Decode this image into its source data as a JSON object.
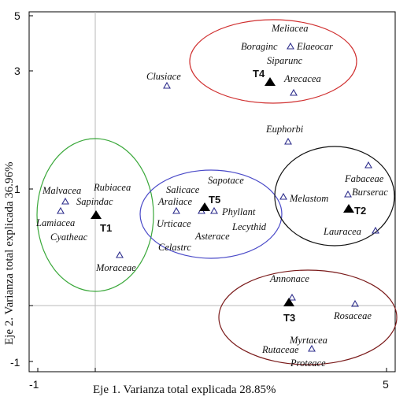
{
  "chart_data": {
    "type": "scatter",
    "title": "",
    "xlabel": "Eje 1. Varianza total explicada 28.85%",
    "ylabel": "Eje 2. Varianza total explicada 36.96%",
    "xlim": [
      -1.1,
      5.1
    ],
    "ylim": [
      -1.15,
      5.1
    ],
    "x_tick_labels": [
      "-1",
      "5"
    ],
    "y_tick_labels": [
      "5",
      "3",
      "1",
      "-1"
    ],
    "y_tick_values": [
      5,
      3,
      1,
      -1
    ],
    "x_tick_values": [
      -1,
      5
    ],
    "grid": false,
    "reference_lines": {
      "x": 0,
      "y": 0
    },
    "colors": {
      "triangle_outline": "#2e2e8c",
      "ellipse_green": "#3aa83a",
      "ellipse_blue": "#4a4ac8",
      "ellipse_red": "#d03030",
      "ellipse_black": "#111111",
      "ellipse_darkred": "#7a1a1a"
    },
    "families": [
      {
        "name": "Meliacea",
        "x": 3.4,
        "y": 4.4
      },
      {
        "name": "Boraginc",
        "x": 3.4,
        "y": 4.4
      },
      {
        "name": "Elaeocar",
        "x": 3.4,
        "y": 4.4
      },
      {
        "name": "Siparunc",
        "x": 3.4,
        "y": 4.4
      },
      {
        "name": "Arecacea",
        "x": 3.45,
        "y": 3.7
      },
      {
        "name": "Clusiace",
        "x": 1.25,
        "y": 3.8
      },
      {
        "name": "Euphorbi",
        "x": 3.35,
        "y": 2.8
      },
      {
        "name": "Sapotace",
        "x": 1.9,
        "y": 1.65
      },
      {
        "name": "Salicace",
        "x": 1.4,
        "y": 1.65
      },
      {
        "name": "Araliace",
        "x": 1.4,
        "y": 1.65
      },
      {
        "name": "Phyllant",
        "x": 2.05,
        "y": 1.65
      },
      {
        "name": "Urticace",
        "x": 1.4,
        "y": 1.65
      },
      {
        "name": "Asterace",
        "x": 1.9,
        "y": 1.65
      },
      {
        "name": "Lecythid",
        "x": 1.9,
        "y": 1.65
      },
      {
        "name": "Celastrc",
        "x": 1.9,
        "y": 1.65
      },
      {
        "name": "Melastom",
        "x": 3.25,
        "y": 1.85
      },
      {
        "name": "Fabaceae",
        "x": 4.6,
        "y": 2.4
      },
      {
        "name": "Burserac",
        "x": 4.45,
        "y": 1.9
      },
      {
        "name": "Lauracea",
        "x": 4.85,
        "y": 1.3
      },
      {
        "name": "Malvacea",
        "x": -0.7,
        "y": 1.8
      },
      {
        "name": "Rubiacea",
        "x": -0.7,
        "y": 1.8
      },
      {
        "name": "Sapindac",
        "x": -0.8,
        "y": 1.65
      },
      {
        "name": "Lamiacea",
        "x": -0.8,
        "y": 1.65
      },
      {
        "name": "Cyatheac",
        "x": -0.8,
        "y": 1.65
      },
      {
        "name": "Moraceae",
        "x": 0.4,
        "y": 0.85
      },
      {
        "name": "Annonace",
        "x": 3.4,
        "y": 0.15
      },
      {
        "name": "Rosaceae",
        "x": 4.5,
        "y": 0.02
      },
      {
        "name": "Myrtacea",
        "x": 3.75,
        "y": -0.75
      },
      {
        "name": "Rutaceae",
        "x": 3.75,
        "y": -0.75
      },
      {
        "name": "Proteace",
        "x": 3.75,
        "y": -0.75
      }
    ],
    "groups": [
      {
        "name": "T1",
        "x": 0.0,
        "y": 1.55
      },
      {
        "name": "T2",
        "x": 4.45,
        "y": 1.65
      },
      {
        "name": "T3",
        "x": 3.3,
        "y": 0.05
      },
      {
        "name": "T4",
        "x": 3.0,
        "y": 3.8
      },
      {
        "name": "T5",
        "x": 1.85,
        "y": 1.7
      }
    ]
  }
}
